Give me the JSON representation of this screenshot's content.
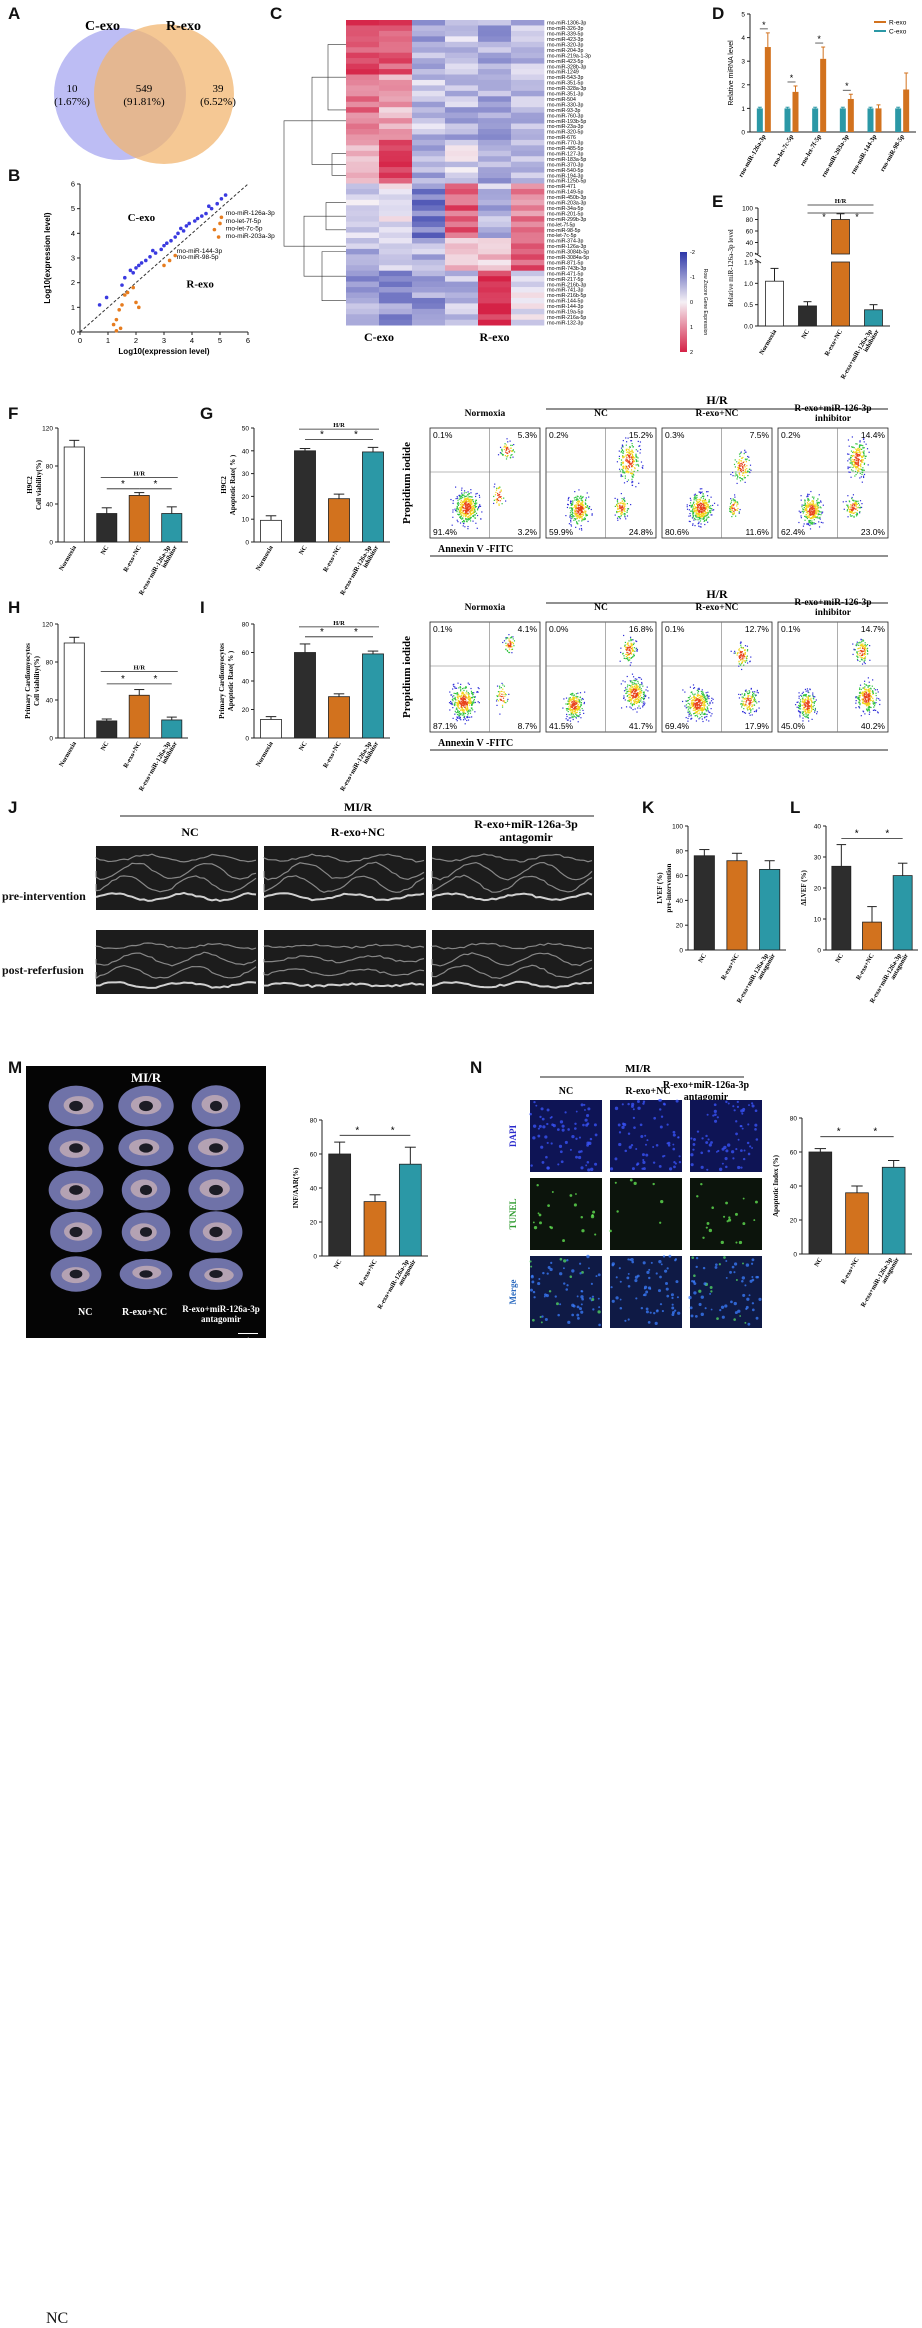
{
  "letters": [
    "A",
    "B",
    "C",
    "D",
    "E",
    "F",
    "G",
    "H",
    "I",
    "J",
    "K",
    "L",
    "M",
    "N"
  ],
  "venn": {
    "left_label": "C-exo",
    "right_label": "R-exo",
    "left_count": "10",
    "left_pct": "(1.67%)",
    "center_count": "549",
    "center_pct": "(91.81%)",
    "right_count": "39",
    "right_pct": "(6.52%)"
  },
  "scatterB": {
    "xlabel": "Log10(expression level)",
    "ylabel": "Log10(expression level)",
    "region_top": "C-exo",
    "region_bottom": "R-exo",
    "annotations": [
      "rno-miR-126a-3p",
      "rno-let-7f-5p",
      "rno-let-7c-5p",
      "rno-miR-203a-3p",
      "rno-miR-144-3p",
      "rno-miR-98-5p"
    ],
    "x_ticks": [
      "0",
      "1",
      "2",
      "3",
      "4",
      "5",
      "6"
    ],
    "y_ticks": [
      "0",
      "1",
      "2",
      "3",
      "4",
      "5",
      "6"
    ]
  },
  "heatmap": {
    "group_left": "C-exo",
    "group_right": "R-exo",
    "legend_title": "Row Zscore Gene Expression",
    "legend_ticks": [
      "-2",
      "-1",
      "0",
      "1",
      "2"
    ],
    "genes": [
      "rno-miR-1306-3p",
      "rno-miR-326-3p",
      "rno-miR-339-5p",
      "rno-miR-423-3p",
      "rno-miR-320-3p",
      "rno-miR-204-3p",
      "rno-miR-219a-1-3p",
      "rno-miR-423-5p",
      "rno-miR-328b-3p",
      "rno-miR-1249",
      "rno-miR-543-3p",
      "rno-miR-351-5p",
      "rno-miR-328a-3p",
      "rno-miR-351-3p",
      "rno-miR-504",
      "rno-miR-330-3p",
      "rno-miR-93-3p",
      "rno-miR-760-3p",
      "rno-miR-193b-5p",
      "rno-miR-23a-3p",
      "rno-miR-320-5p",
      "rno-miR-676",
      "rno-miR-770-3p",
      "rno-miR-485-5p",
      "rno-miR-127-3p",
      "rno-miR-183a-5p",
      "rno-miR-370-3p",
      "rno-miR-540-5p",
      "rno-miR-194-3p",
      "rno-miR-125b-5p",
      "rno-miR-471",
      "rno-miR-149-5p",
      "rno-miR-450b-3p",
      "rno-miR-203a-3p",
      "rno-miR-34a-5p",
      "rno-miR-201-5p",
      "rno-miR-299b-3p",
      "rno-let-7f-5p",
      "rno-miR-98-5p",
      "rno-let-7c-5p",
      "rno-miR-374-3p",
      "rno-miR-126a-3p",
      "rno-miR-3084b-5p",
      "rno-miR-3084a-5p",
      "rno-miR-871-5p",
      "rno-miR-743b-3p",
      "rno-miR-471-5p",
      "rno-miR-217-5p",
      "rno-miR-216b-3p",
      "rno-miR-741-3p",
      "rno-miR-216b-5p",
      "rno-miR-144-5p",
      "rno-miR-144-3p",
      "rno-miR-19a-5p",
      "rno-miR-216a-5p",
      "rno-miR-132-3p"
    ]
  },
  "chart_data": [
    {
      "id": "D",
      "type": "bar",
      "ylabel": "Relative miRNA level",
      "categories": [
        "rno-miR-126a-3p",
        "rno-let-7c-5p",
        "rno-let-7f-5p",
        "rno-miR-203a-3p",
        "rno-miR-144-3p",
        "rno-miR-98-5p"
      ],
      "series": [
        {
          "name": "R-exo",
          "values": [
            3.6,
            1.7,
            3.1,
            1.4,
            1.0,
            1.8
          ],
          "errors": [
            0.6,
            0.25,
            0.5,
            0.2,
            0.15,
            0.7
          ],
          "color": "#d2721e"
        },
        {
          "name": "C-exo",
          "values": [
            1.0,
            1.0,
            1.0,
            1.0,
            1.0,
            1.0
          ],
          "errors": [
            0.05,
            0.05,
            0.05,
            0.05,
            0.05,
            0.05
          ],
          "color": "#2b98a6"
        }
      ],
      "ylim": [
        0,
        5
      ],
      "y_ticks": [
        "0",
        "1",
        "2",
        "3",
        "4",
        "5"
      ],
      "sig": [
        "*",
        "*",
        "*",
        "*"
      ],
      "legend": "top-right"
    },
    {
      "id": "E",
      "type": "bar",
      "ylabel": "Relative miR-126a-3p level",
      "categories": [
        "Normoxia",
        "NC",
        "R-exo+NC",
        "R-exo+miR-126a-3p inhibitor"
      ],
      "values": [
        1.05,
        0.47,
        80,
        0.38
      ],
      "errors": [
        0.3,
        0.1,
        10,
        0.12
      ],
      "colors": [
        "#ffffff",
        "#2d2d2d",
        "#d2721e",
        "#2b98a6"
      ],
      "y_ticks": [
        "0.0",
        "0.5",
        "1.0",
        "1.5",
        "20",
        "40",
        "60",
        "80",
        "100"
      ],
      "bracket_label": "H/R",
      "sig": [
        "*",
        "*"
      ]
    },
    {
      "id": "F",
      "type": "bar",
      "ylabel": "H9C2 Cell viability(%)",
      "categories": [
        "Normoxia",
        "NC",
        "R-exo+NC",
        "R-exo+miR-126a-3p inhibitor"
      ],
      "values": [
        100,
        30,
        49,
        30
      ],
      "errors": [
        7,
        6,
        3,
        7
      ],
      "colors": [
        "#ffffff",
        "#2d2d2d",
        "#d2721e",
        "#2b98a6"
      ],
      "ylim": [
        0,
        120
      ],
      "y_ticks": [
        "0",
        "40",
        "80",
        "120"
      ],
      "bracket_label": "H/R",
      "sig": [
        "*",
        "*"
      ]
    },
    {
      "id": "G",
      "type": "bar",
      "ylabel": "H9C2 Apoptotic Rate( % )",
      "categories": [
        "Normoxia",
        "NC",
        "R-exo+NC",
        "R-exo+miR-126a-3p inhibitor"
      ],
      "values": [
        9.5,
        40,
        19,
        39.5
      ],
      "errors": [
        2,
        1,
        2,
        2
      ],
      "colors": [
        "#ffffff",
        "#2d2d2d",
        "#d2721e",
        "#2b98a6"
      ],
      "ylim": [
        0,
        50
      ],
      "y_ticks": [
        "0",
        "10",
        "20",
        "30",
        "40",
        "50"
      ],
      "bracket_label": "H/R",
      "sig": [
        "*",
        "*"
      ]
    },
    {
      "id": "H",
      "type": "bar",
      "ylabel": "Primary Cardiomyocytes Cell viability(%)",
      "categories": [
        "Normoxia",
        "NC",
        "R-exo+NC",
        "R-exo+miR-126a-3p inhibitor"
      ],
      "values": [
        100,
        18,
        45,
        19
      ],
      "errors": [
        6,
        2,
        6,
        3
      ],
      "colors": [
        "#ffffff",
        "#2d2d2d",
        "#d2721e",
        "#2b98a6"
      ],
      "ylim": [
        0,
        120
      ],
      "y_ticks": [
        "0",
        "40",
        "80",
        "120"
      ],
      "bracket_label": "H/R",
      "sig": [
        "*",
        "*"
      ]
    },
    {
      "id": "I",
      "type": "bar",
      "ylabel": "Primary Cardiomyocytes Apoptotic Rate( % )",
      "categories": [
        "Normoxia",
        "NC",
        "R-exo+NC",
        "R-exo+miR-126a-3p inhibitor"
      ],
      "values": [
        13,
        60,
        29,
        59
      ],
      "errors": [
        2,
        6,
        2,
        2
      ],
      "colors": [
        "#ffffff",
        "#2d2d2d",
        "#d2721e",
        "#2b98a6"
      ],
      "ylim": [
        0,
        80
      ],
      "y_ticks": [
        "0",
        "20",
        "40",
        "60",
        "80"
      ],
      "bracket_label": "H/R",
      "sig": [
        "*",
        "*"
      ]
    },
    {
      "id": "K",
      "type": "bar",
      "ylabel": "LVEF (%) pre-intervention",
      "categories": [
        "NC",
        "R-exo+NC",
        "R-exo+miR-126a-3p antagomir"
      ],
      "values": [
        76,
        72,
        65
      ],
      "errors": [
        5,
        6,
        7
      ],
      "colors": [
        "#2d2d2d",
        "#d2721e",
        "#2b98a6"
      ],
      "ylim": [
        0,
        100
      ],
      "y_ticks": [
        "0",
        "20",
        "40",
        "60",
        "80",
        "100"
      ]
    },
    {
      "id": "L",
      "type": "bar",
      "ylabel": "ΔLVEF (%)",
      "categories": [
        "NC",
        "R-exo+NC",
        "R-exo+miR-126a-3p antagomir"
      ],
      "values": [
        27,
        9,
        24
      ],
      "errors": [
        7,
        5,
        4
      ],
      "colors": [
        "#2d2d2d",
        "#d2721e",
        "#2b98a6"
      ],
      "ylim": [
        0,
        40
      ],
      "y_ticks": [
        "0",
        "10",
        "20",
        "30",
        "40"
      ],
      "sig": [
        "*",
        "*"
      ]
    },
    {
      "id": "M",
      "type": "bar",
      "ylabel": "INF/AAR(%)",
      "categories": [
        "NC",
        "R-exo+NC",
        "R-exo+miR-126a-3p antagomir"
      ],
      "values": [
        60,
        32,
        54
      ],
      "errors": [
        7,
        4,
        10
      ],
      "colors": [
        "#2d2d2d",
        "#d2721e",
        "#2b98a6"
      ],
      "ylim": [
        0,
        80
      ],
      "y_ticks": [
        "0",
        "20",
        "40",
        "60",
        "80"
      ],
      "sig": [
        "*",
        "*"
      ]
    },
    {
      "id": "N",
      "type": "bar",
      "ylabel": "Apoptotic Index (%)",
      "categories": [
        "NC",
        "R-exo+NC",
        "R-exo+miR-126a-3p antagomir"
      ],
      "values": [
        60,
        36,
        51
      ],
      "errors": [
        2,
        4,
        4
      ],
      "colors": [
        "#2d2d2d",
        "#d2721e",
        "#2b98a6"
      ],
      "ylim": [
        0,
        80
      ],
      "y_ticks": [
        "0",
        "20",
        "40",
        "60",
        "80"
      ],
      "sig": [
        "*",
        "*"
      ]
    }
  ],
  "flowG": {
    "group_label": "H/R",
    "y_label": "Propidium iodide",
    "x_label": "Annexin V -FITC",
    "plots": [
      {
        "title": "Normoxia",
        "q": [
          "0.1%",
          "5.3%",
          "91.4%",
          "3.2%"
        ]
      },
      {
        "title": "NC",
        "q": [
          "0.2%",
          "15.2%",
          "59.9%",
          "24.8%"
        ]
      },
      {
        "title": "R-exo+NC",
        "q": [
          "0.3%",
          "7.5%",
          "80.6%",
          "11.6%"
        ]
      },
      {
        "title": "R-exo+miR-126-3p inhibitor",
        "q": [
          "0.2%",
          "14.4%",
          "62.4%",
          "23.0%"
        ]
      }
    ]
  },
  "flowI": {
    "group_label": "H/R",
    "y_label": "Propidium iodide",
    "x_label": "Annexin V -FITC",
    "plots": [
      {
        "title": "Normoxia",
        "q": [
          "0.1%",
          "4.1%",
          "87.1%",
          "8.7%"
        ]
      },
      {
        "title": "NC",
        "q": [
          "0.0%",
          "16.8%",
          "41.5%",
          "41.7%"
        ]
      },
      {
        "title": "R-exo+NC",
        "q": [
          "0.1%",
          "12.7%",
          "69.4%",
          "17.9%"
        ]
      },
      {
        "title": "R-exo+miR-126-3p inhibitor",
        "q": [
          "0.1%",
          "14.7%",
          "45.0%",
          "40.2%"
        ]
      }
    ]
  },
  "echoJ": {
    "title": "MI/R",
    "cols": [
      "NC",
      "R-exo+NC",
      "R-exo+miR-126a-3p antagomir"
    ],
    "rows": [
      "pre-intervention",
      "post-referfusion"
    ]
  },
  "heartsM": {
    "title": "MI/R",
    "cols": [
      "NC",
      "R-exo+NC",
      "R-exo+miR-126a-3p antagomir"
    ],
    "scale": "1cm"
  },
  "tunelN": {
    "title": "MI/R",
    "cols": [
      "NC",
      "R-exo+NC",
      "R-exo+miR-126a-3p antagomir"
    ],
    "rows": [
      "DAPI",
      "TUNEL",
      "Merge"
    ]
  }
}
